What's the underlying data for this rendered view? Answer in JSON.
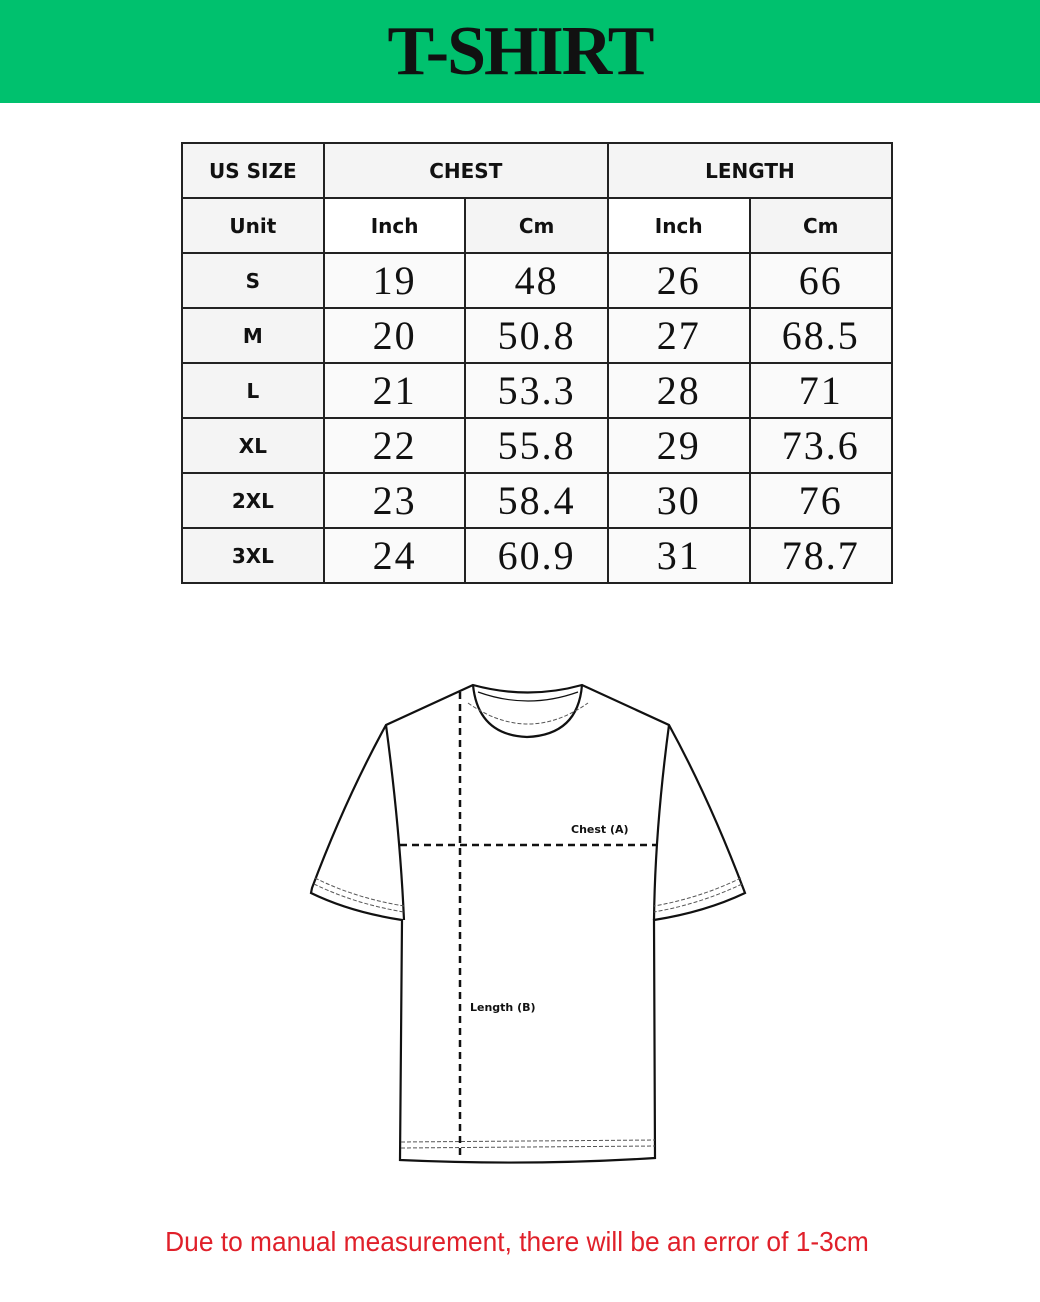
{
  "title": "T-SHIRT",
  "colors": {
    "banner": "#00c16e",
    "note": "#e0202a"
  },
  "table": {
    "header": {
      "size": "US SIZE",
      "chest": "CHEST",
      "length": "LENGTH"
    },
    "units": {
      "label": "Unit",
      "chest_inch": "Inch",
      "chest_cm": "Cm",
      "length_inch": "Inch",
      "length_cm": "Cm"
    },
    "rows": [
      {
        "size": "S",
        "chest_inch": "19",
        "chest_cm": "48",
        "length_inch": "26",
        "length_cm": "66"
      },
      {
        "size": "M",
        "chest_inch": "20",
        "chest_cm": "50.8",
        "length_inch": "27",
        "length_cm": "68.5"
      },
      {
        "size": "L",
        "chest_inch": "21",
        "chest_cm": "53.3",
        "length_inch": "28",
        "length_cm": "71"
      },
      {
        "size": "XL",
        "chest_inch": "22",
        "chest_cm": "55.8",
        "length_inch": "29",
        "length_cm": "73.6"
      },
      {
        "size": "2XL",
        "chest_inch": "23",
        "chest_cm": "58.4",
        "length_inch": "30",
        "length_cm": "76"
      },
      {
        "size": "3XL",
        "chest_inch": "24",
        "chest_cm": "60.9",
        "length_inch": "31",
        "length_cm": "78.7"
      }
    ]
  },
  "diagram": {
    "chest_label": "Chest (A)",
    "length_label": "Length (B)"
  },
  "note": "Due to manual measurement, there will be an error of 1-3cm"
}
